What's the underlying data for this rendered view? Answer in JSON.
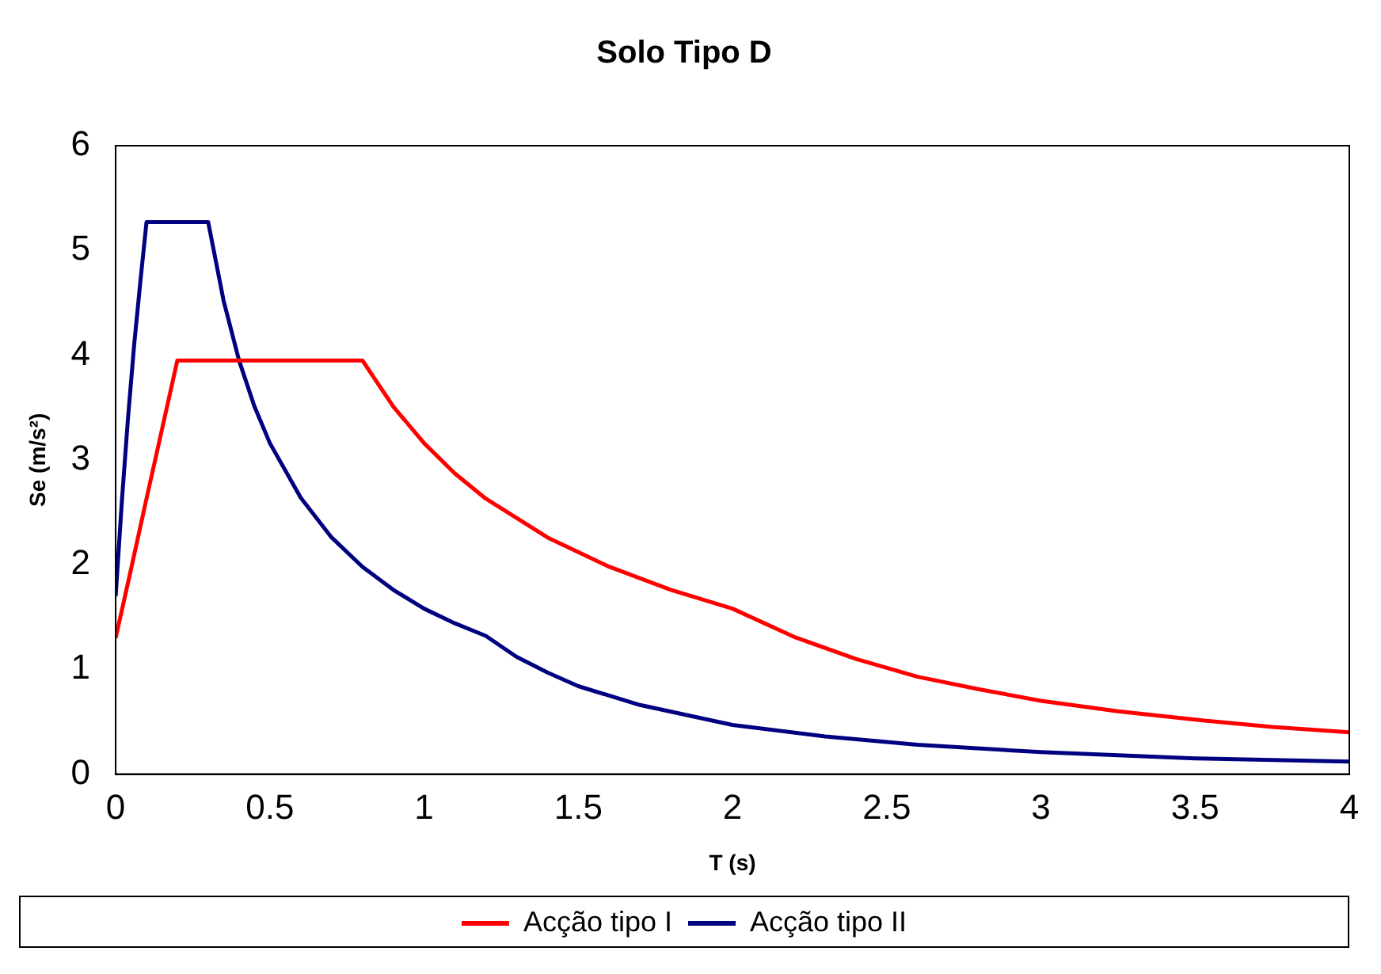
{
  "chart_data": {
    "type": "line",
    "title": "Solo Tipo D",
    "xlabel": "T (s)",
    "ylabel": "Se (m/s²)",
    "xlim": [
      0,
      4
    ],
    "xticks": [
      0,
      0.5,
      1,
      1.5,
      2,
      2.5,
      3,
      3.5,
      4
    ],
    "ylim": [
      0,
      6
    ],
    "yticks": [
      0,
      1,
      2,
      3,
      4,
      5,
      6
    ],
    "grid": false,
    "legend": "bottom",
    "marker": "none",
    "line_style": "solid",
    "series": [
      {
        "name": "Acção tipo I",
        "color": "#ff0000",
        "x": [
          0,
          0.05,
          0.1,
          0.15,
          0.2,
          0.8,
          0.9,
          1.0,
          1.1,
          1.2,
          1.4,
          1.6,
          1.8,
          2.0,
          2.2,
          2.4,
          2.6,
          2.8,
          3.0,
          3.25,
          3.5,
          3.75,
          4.0
        ],
        "values": [
          1.3,
          1.96,
          2.63,
          3.29,
          3.95,
          3.95,
          3.51,
          3.16,
          2.87,
          2.63,
          2.26,
          1.98,
          1.76,
          1.58,
          1.31,
          1.1,
          0.93,
          0.81,
          0.7,
          0.6,
          0.52,
          0.45,
          0.4
        ]
      },
      {
        "name": "Acção tipo II",
        "color": "#000080",
        "x": [
          0,
          0.02,
          0.04,
          0.06,
          0.08,
          0.1,
          0.3,
          0.35,
          0.4,
          0.45,
          0.5,
          0.6,
          0.7,
          0.8,
          0.9,
          1.0,
          1.1,
          1.2,
          1.3,
          1.4,
          1.5,
          1.7,
          2.0,
          2.3,
          2.6,
          3.0,
          3.5,
          4.0
        ],
        "values": [
          1.7,
          2.6,
          3.4,
          4.1,
          4.7,
          5.27,
          5.27,
          4.52,
          3.95,
          3.51,
          3.16,
          2.64,
          2.26,
          1.98,
          1.76,
          1.58,
          1.44,
          1.32,
          1.12,
          0.97,
          0.84,
          0.66,
          0.47,
          0.36,
          0.28,
          0.21,
          0.15,
          0.12
        ]
      }
    ]
  }
}
